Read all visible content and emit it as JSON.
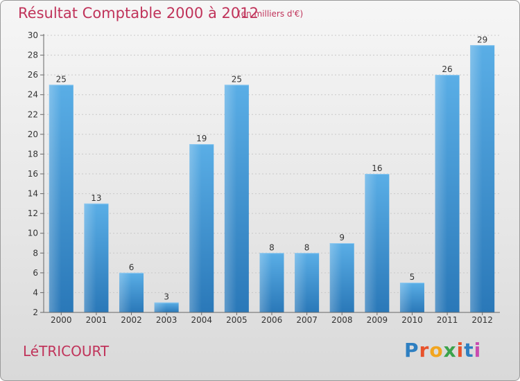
{
  "header": {
    "title": "Résultat Comptable 2000 à 2012",
    "subtitle": "(en milliers d'€)"
  },
  "footer": {
    "commune": "LéTRICOURT",
    "logo_letters": [
      "P",
      "r",
      "o",
      "x",
      "i",
      "t",
      "i"
    ],
    "logo_colors": [
      "#2e7fc1",
      "#e8522b",
      "#f2a51f",
      "#3ba34b",
      "#e8522b",
      "#2e7fc1",
      "#c94bb0"
    ]
  },
  "colors": {
    "title": "#c0335a",
    "bar_light": "#5aaee6",
    "bar_dark": "#2a78b8",
    "axis": "#666666",
    "grid": "#c8c8c8"
  },
  "chart_data": {
    "type": "bar",
    "title": "Résultat Comptable 2000 à 2012",
    "xlabel": "",
    "ylabel": "",
    "ylim": [
      2,
      30
    ],
    "yticks": [
      2,
      4,
      6,
      8,
      10,
      12,
      14,
      16,
      18,
      20,
      22,
      24,
      26,
      28,
      30
    ],
    "categories": [
      "2000",
      "2001",
      "2002",
      "2003",
      "2004",
      "2005",
      "2006",
      "2007",
      "2008",
      "2009",
      "2010",
      "2011",
      "2012"
    ],
    "values": [
      25,
      13,
      6,
      3,
      19,
      25,
      8,
      8,
      9,
      16,
      5,
      26,
      29
    ]
  }
}
